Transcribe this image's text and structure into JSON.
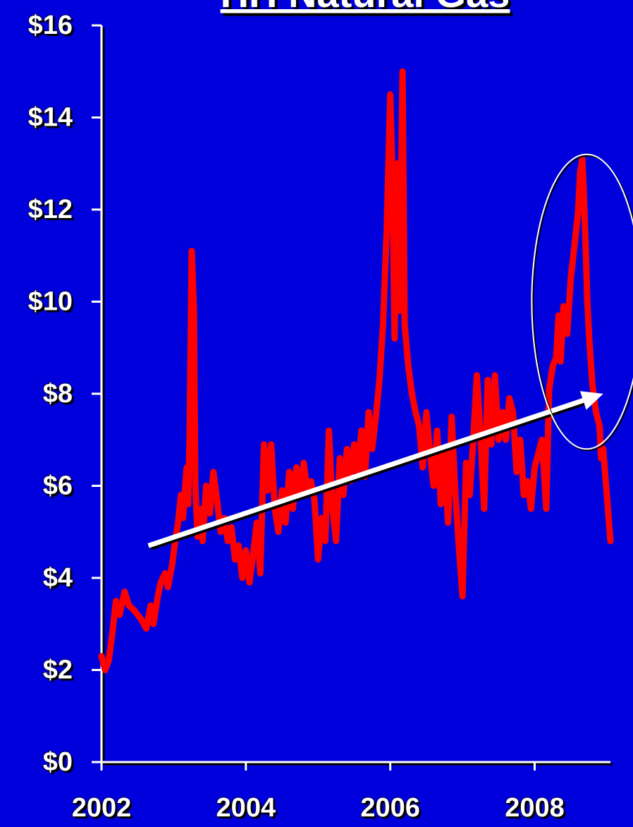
{
  "chart_data": {
    "type": "line",
    "title": "HH Natural Gas",
    "xlabel": "",
    "ylabel": "",
    "x_ticks": [
      "2002",
      "2004",
      "2006",
      "2008"
    ],
    "y_ticks": [
      "$0",
      "$2",
      "$4",
      "$6",
      "$8",
      "$10",
      "$12",
      "$14",
      "$16"
    ],
    "xlim": [
      2002.0,
      2009.05
    ],
    "ylim": [
      0,
      16
    ],
    "grid": false,
    "colors": {
      "background": "#0000dd",
      "series": "#ff0000",
      "axis": "#ffffff",
      "annotation": "#ffffff"
    },
    "series": [
      {
        "values": [
          [
            2002.0,
            2.3
          ],
          [
            2002.05,
            2.0
          ],
          [
            2002.1,
            2.2
          ],
          [
            2002.15,
            2.8
          ],
          [
            2002.2,
            3.5
          ],
          [
            2002.25,
            3.2
          ],
          [
            2002.32,
            3.7
          ],
          [
            2002.38,
            3.4
          ],
          [
            2002.45,
            3.3
          ],
          [
            2002.55,
            3.1
          ],
          [
            2002.62,
            2.9
          ],
          [
            2002.68,
            3.4
          ],
          [
            2002.72,
            3.0
          ],
          [
            2002.78,
            3.6
          ],
          [
            2002.82,
            3.9
          ],
          [
            2002.88,
            4.1
          ],
          [
            2002.92,
            3.8
          ],
          [
            2002.98,
            4.3
          ],
          [
            2003.02,
            4.8
          ],
          [
            2003.06,
            5.2
          ],
          [
            2003.1,
            5.8
          ],
          [
            2003.13,
            5.3
          ],
          [
            2003.16,
            6.0
          ],
          [
            2003.18,
            6.4
          ],
          [
            2003.2,
            5.6
          ],
          [
            2003.22,
            7.0
          ],
          [
            2003.25,
            11.1
          ],
          [
            2003.28,
            9.8
          ],
          [
            2003.3,
            6.0
          ],
          [
            2003.33,
            4.9
          ],
          [
            2003.37,
            5.5
          ],
          [
            2003.4,
            4.8
          ],
          [
            2003.45,
            6.0
          ],
          [
            2003.5,
            5.4
          ],
          [
            2003.55,
            6.3
          ],
          [
            2003.6,
            5.7
          ],
          [
            2003.65,
            5.0
          ],
          [
            2003.7,
            5.3
          ],
          [
            2003.75,
            4.8
          ],
          [
            2003.8,
            5.1
          ],
          [
            2003.85,
            4.4
          ],
          [
            2003.9,
            4.7
          ],
          [
            2003.95,
            4.0
          ],
          [
            2004.0,
            4.6
          ],
          [
            2004.05,
            3.9
          ],
          [
            2004.1,
            4.5
          ],
          [
            2004.15,
            5.2
          ],
          [
            2004.2,
            4.1
          ],
          [
            2004.25,
            6.9
          ],
          [
            2004.3,
            5.9
          ],
          [
            2004.35,
            6.9
          ],
          [
            2004.4,
            5.5
          ],
          [
            2004.45,
            5.0
          ],
          [
            2004.5,
            5.9
          ],
          [
            2004.55,
            5.2
          ],
          [
            2004.6,
            6.3
          ],
          [
            2004.65,
            5.5
          ],
          [
            2004.7,
            6.4
          ],
          [
            2004.75,
            5.8
          ],
          [
            2004.8,
            6.5
          ],
          [
            2004.85,
            5.9
          ],
          [
            2004.9,
            6.1
          ],
          [
            2004.95,
            5.7
          ],
          [
            2005.0,
            4.4
          ],
          [
            2005.05,
            5.3
          ],
          [
            2005.1,
            4.8
          ],
          [
            2005.15,
            7.2
          ],
          [
            2005.2,
            5.5
          ],
          [
            2005.25,
            4.8
          ],
          [
            2005.3,
            6.6
          ],
          [
            2005.35,
            5.8
          ],
          [
            2005.4,
            6.8
          ],
          [
            2005.45,
            6.1
          ],
          [
            2005.5,
            6.9
          ],
          [
            2005.55,
            6.3
          ],
          [
            2005.6,
            7.2
          ],
          [
            2005.65,
            6.2
          ],
          [
            2005.7,
            7.6
          ],
          [
            2005.75,
            6.8
          ],
          [
            2005.8,
            7.5
          ],
          [
            2005.85,
            8.3
          ],
          [
            2005.9,
            9.5
          ],
          [
            2005.95,
            11.5
          ],
          [
            2006.0,
            14.5
          ],
          [
            2006.03,
            12.8
          ],
          [
            2006.06,
            9.2
          ],
          [
            2006.1,
            13.0
          ],
          [
            2006.13,
            9.8
          ],
          [
            2006.17,
            15.0
          ],
          [
            2006.2,
            9.5
          ],
          [
            2006.25,
            8.6
          ],
          [
            2006.3,
            8.0
          ],
          [
            2006.35,
            7.6
          ],
          [
            2006.4,
            7.3
          ],
          [
            2006.45,
            6.4
          ],
          [
            2006.5,
            7.6
          ],
          [
            2006.55,
            6.7
          ],
          [
            2006.6,
            6.0
          ],
          [
            2006.65,
            7.2
          ],
          [
            2006.7,
            5.6
          ],
          [
            2006.75,
            6.8
          ],
          [
            2006.8,
            5.2
          ],
          [
            2006.85,
            7.5
          ],
          [
            2006.9,
            5.9
          ],
          [
            2006.95,
            4.7
          ],
          [
            2007.0,
            3.6
          ],
          [
            2007.05,
            6.5
          ],
          [
            2007.1,
            5.8
          ],
          [
            2007.15,
            7.0
          ],
          [
            2007.2,
            8.4
          ],
          [
            2007.25,
            7.1
          ],
          [
            2007.3,
            5.5
          ],
          [
            2007.35,
            8.3
          ],
          [
            2007.4,
            6.9
          ],
          [
            2007.45,
            8.4
          ],
          [
            2007.5,
            7.0
          ],
          [
            2007.55,
            7.6
          ],
          [
            2007.6,
            7.0
          ],
          [
            2007.65,
            7.9
          ],
          [
            2007.7,
            7.6
          ],
          [
            2007.75,
            6.3
          ],
          [
            2007.8,
            7.0
          ],
          [
            2007.85,
            5.8
          ],
          [
            2007.9,
            6.1
          ],
          [
            2007.95,
            5.5
          ],
          [
            2008.0,
            6.4
          ],
          [
            2008.05,
            6.7
          ],
          [
            2008.1,
            7.0
          ],
          [
            2008.13,
            6.3
          ],
          [
            2008.16,
            5.5
          ],
          [
            2008.2,
            8.1
          ],
          [
            2008.25,
            8.6
          ],
          [
            2008.3,
            8.8
          ],
          [
            2008.33,
            9.7
          ],
          [
            2008.36,
            8.7
          ],
          [
            2008.4,
            9.9
          ],
          [
            2008.45,
            9.3
          ],
          [
            2008.5,
            10.5
          ],
          [
            2008.55,
            11.2
          ],
          [
            2008.6,
            11.9
          ],
          [
            2008.63,
            12.8
          ],
          [
            2008.66,
            13.1
          ],
          [
            2008.68,
            12.4
          ],
          [
            2008.7,
            11.5
          ],
          [
            2008.73,
            10.0
          ],
          [
            2008.76,
            9.1
          ],
          [
            2008.8,
            8.2
          ],
          [
            2008.85,
            7.6
          ],
          [
            2008.9,
            7.3
          ],
          [
            2008.92,
            6.6
          ],
          [
            2008.95,
            6.8
          ],
          [
            2008.98,
            6.2
          ],
          [
            2009.0,
            5.8
          ],
          [
            2009.02,
            5.4
          ],
          [
            2009.05,
            4.8
          ]
        ]
      }
    ],
    "annotations": {
      "trend_arrow": {
        "from": [
          2002.65,
          4.7
        ],
        "to": [
          2008.95,
          8.0
        ]
      },
      "highlight_ellipse": {
        "center": [
          2008.72,
          10.0
        ],
        "rx_years": 0.76,
        "ry_value": 3.2
      }
    }
  }
}
